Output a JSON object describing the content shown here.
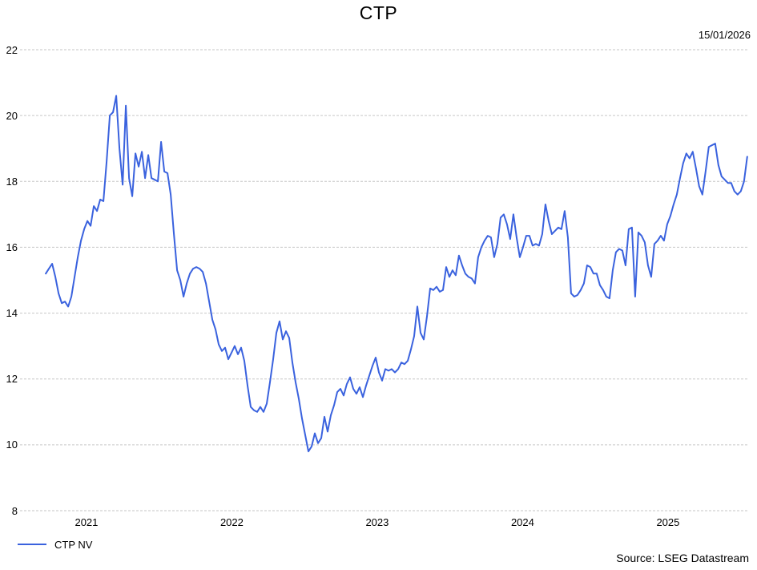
{
  "title": "CTP",
  "date_label": "15/01/2026",
  "source": "Source: LSEG Datastream",
  "legend": [
    {
      "label": "CTP NV",
      "color": "#3a62de"
    }
  ],
  "colors": {
    "line": "#3a62de",
    "grid": "#c6c6c6",
    "text": "#000000",
    "background": "#ffffff"
  },
  "chart_data": {
    "type": "line",
    "title": "CTP",
    "xlabel": "",
    "ylabel": "",
    "grid": "horizontal-dashed",
    "legend_position": "bottom-left",
    "x_domain": [
      2021.043,
      2026.057
    ],
    "y_domain": [
      8,
      22
    ],
    "y_ticks": [
      8,
      10,
      12,
      14,
      16,
      18,
      20,
      22
    ],
    "x_ticks": [
      {
        "t": 2021.5,
        "label": "2021"
      },
      {
        "t": 2022.5,
        "label": "2022"
      },
      {
        "t": 2023.5,
        "label": "2023"
      },
      {
        "t": 2024.5,
        "label": "2024"
      },
      {
        "t": 2025.5,
        "label": "2025"
      }
    ],
    "series": [
      {
        "name": "CTP NV",
        "t_start": 2021.22,
        "t_end": 2026.045,
        "values": [
          15.2,
          15.35,
          15.5,
          15.1,
          14.6,
          14.3,
          14.35,
          14.2,
          14.5,
          15.1,
          15.7,
          16.2,
          16.55,
          16.8,
          16.65,
          17.25,
          17.1,
          17.45,
          17.4,
          18.6,
          20.0,
          20.1,
          20.6,
          19.0,
          17.9,
          20.3,
          18.1,
          17.55,
          18.85,
          18.45,
          18.9,
          18.1,
          18.8,
          18.1,
          18.05,
          18.0,
          19.2,
          18.3,
          18.25,
          17.6,
          16.4,
          15.3,
          15.0,
          14.5,
          14.9,
          15.2,
          15.35,
          15.4,
          15.35,
          15.25,
          14.9,
          14.35,
          13.8,
          13.5,
          13.05,
          12.85,
          12.95,
          12.6,
          12.8,
          13.0,
          12.75,
          12.95,
          12.55,
          11.8,
          11.15,
          11.05,
          11.0,
          11.15,
          11.0,
          11.25,
          11.9,
          12.6,
          13.4,
          13.75,
          13.2,
          13.45,
          13.25,
          12.5,
          11.9,
          11.4,
          10.8,
          10.3,
          9.8,
          9.95,
          10.35,
          10.05,
          10.2,
          10.85,
          10.4,
          10.9,
          11.2,
          11.6,
          11.7,
          11.5,
          11.85,
          12.05,
          11.7,
          11.55,
          11.75,
          11.45,
          11.8,
          12.1,
          12.4,
          12.65,
          12.2,
          11.95,
          12.3,
          12.25,
          12.3,
          12.2,
          12.3,
          12.5,
          12.45,
          12.55,
          12.9,
          13.3,
          14.2,
          13.4,
          13.2,
          13.9,
          14.75,
          14.7,
          14.8,
          14.65,
          14.7,
          15.4,
          15.1,
          15.3,
          15.15,
          15.75,
          15.45,
          15.2,
          15.1,
          15.05,
          14.9,
          15.7,
          16.0,
          16.2,
          16.35,
          16.3,
          15.7,
          16.1,
          16.9,
          17.0,
          16.7,
          16.25,
          17.0,
          16.3,
          15.7,
          16.0,
          16.35,
          16.35,
          16.05,
          16.1,
          16.05,
          16.4,
          17.3,
          16.8,
          16.4,
          16.5,
          16.6,
          16.55,
          17.1,
          16.3,
          14.6,
          14.5,
          14.55,
          14.7,
          14.9,
          15.45,
          15.4,
          15.2,
          15.2,
          14.85,
          14.7,
          14.5,
          14.45,
          15.3,
          15.85,
          15.95,
          15.9,
          15.45,
          16.55,
          16.6,
          14.5,
          16.45,
          16.35,
          16.15,
          15.45,
          15.1,
          16.1,
          16.2,
          16.35,
          16.2,
          16.7,
          16.95,
          17.3,
          17.6,
          18.1,
          18.55,
          18.85,
          18.7,
          18.9,
          18.4,
          17.85,
          17.6,
          18.3,
          19.05,
          19.1,
          19.15,
          18.5,
          18.15,
          18.05,
          17.95,
          17.95,
          17.7,
          17.6,
          17.7,
          18.0,
          18.75
        ]
      }
    ]
  }
}
